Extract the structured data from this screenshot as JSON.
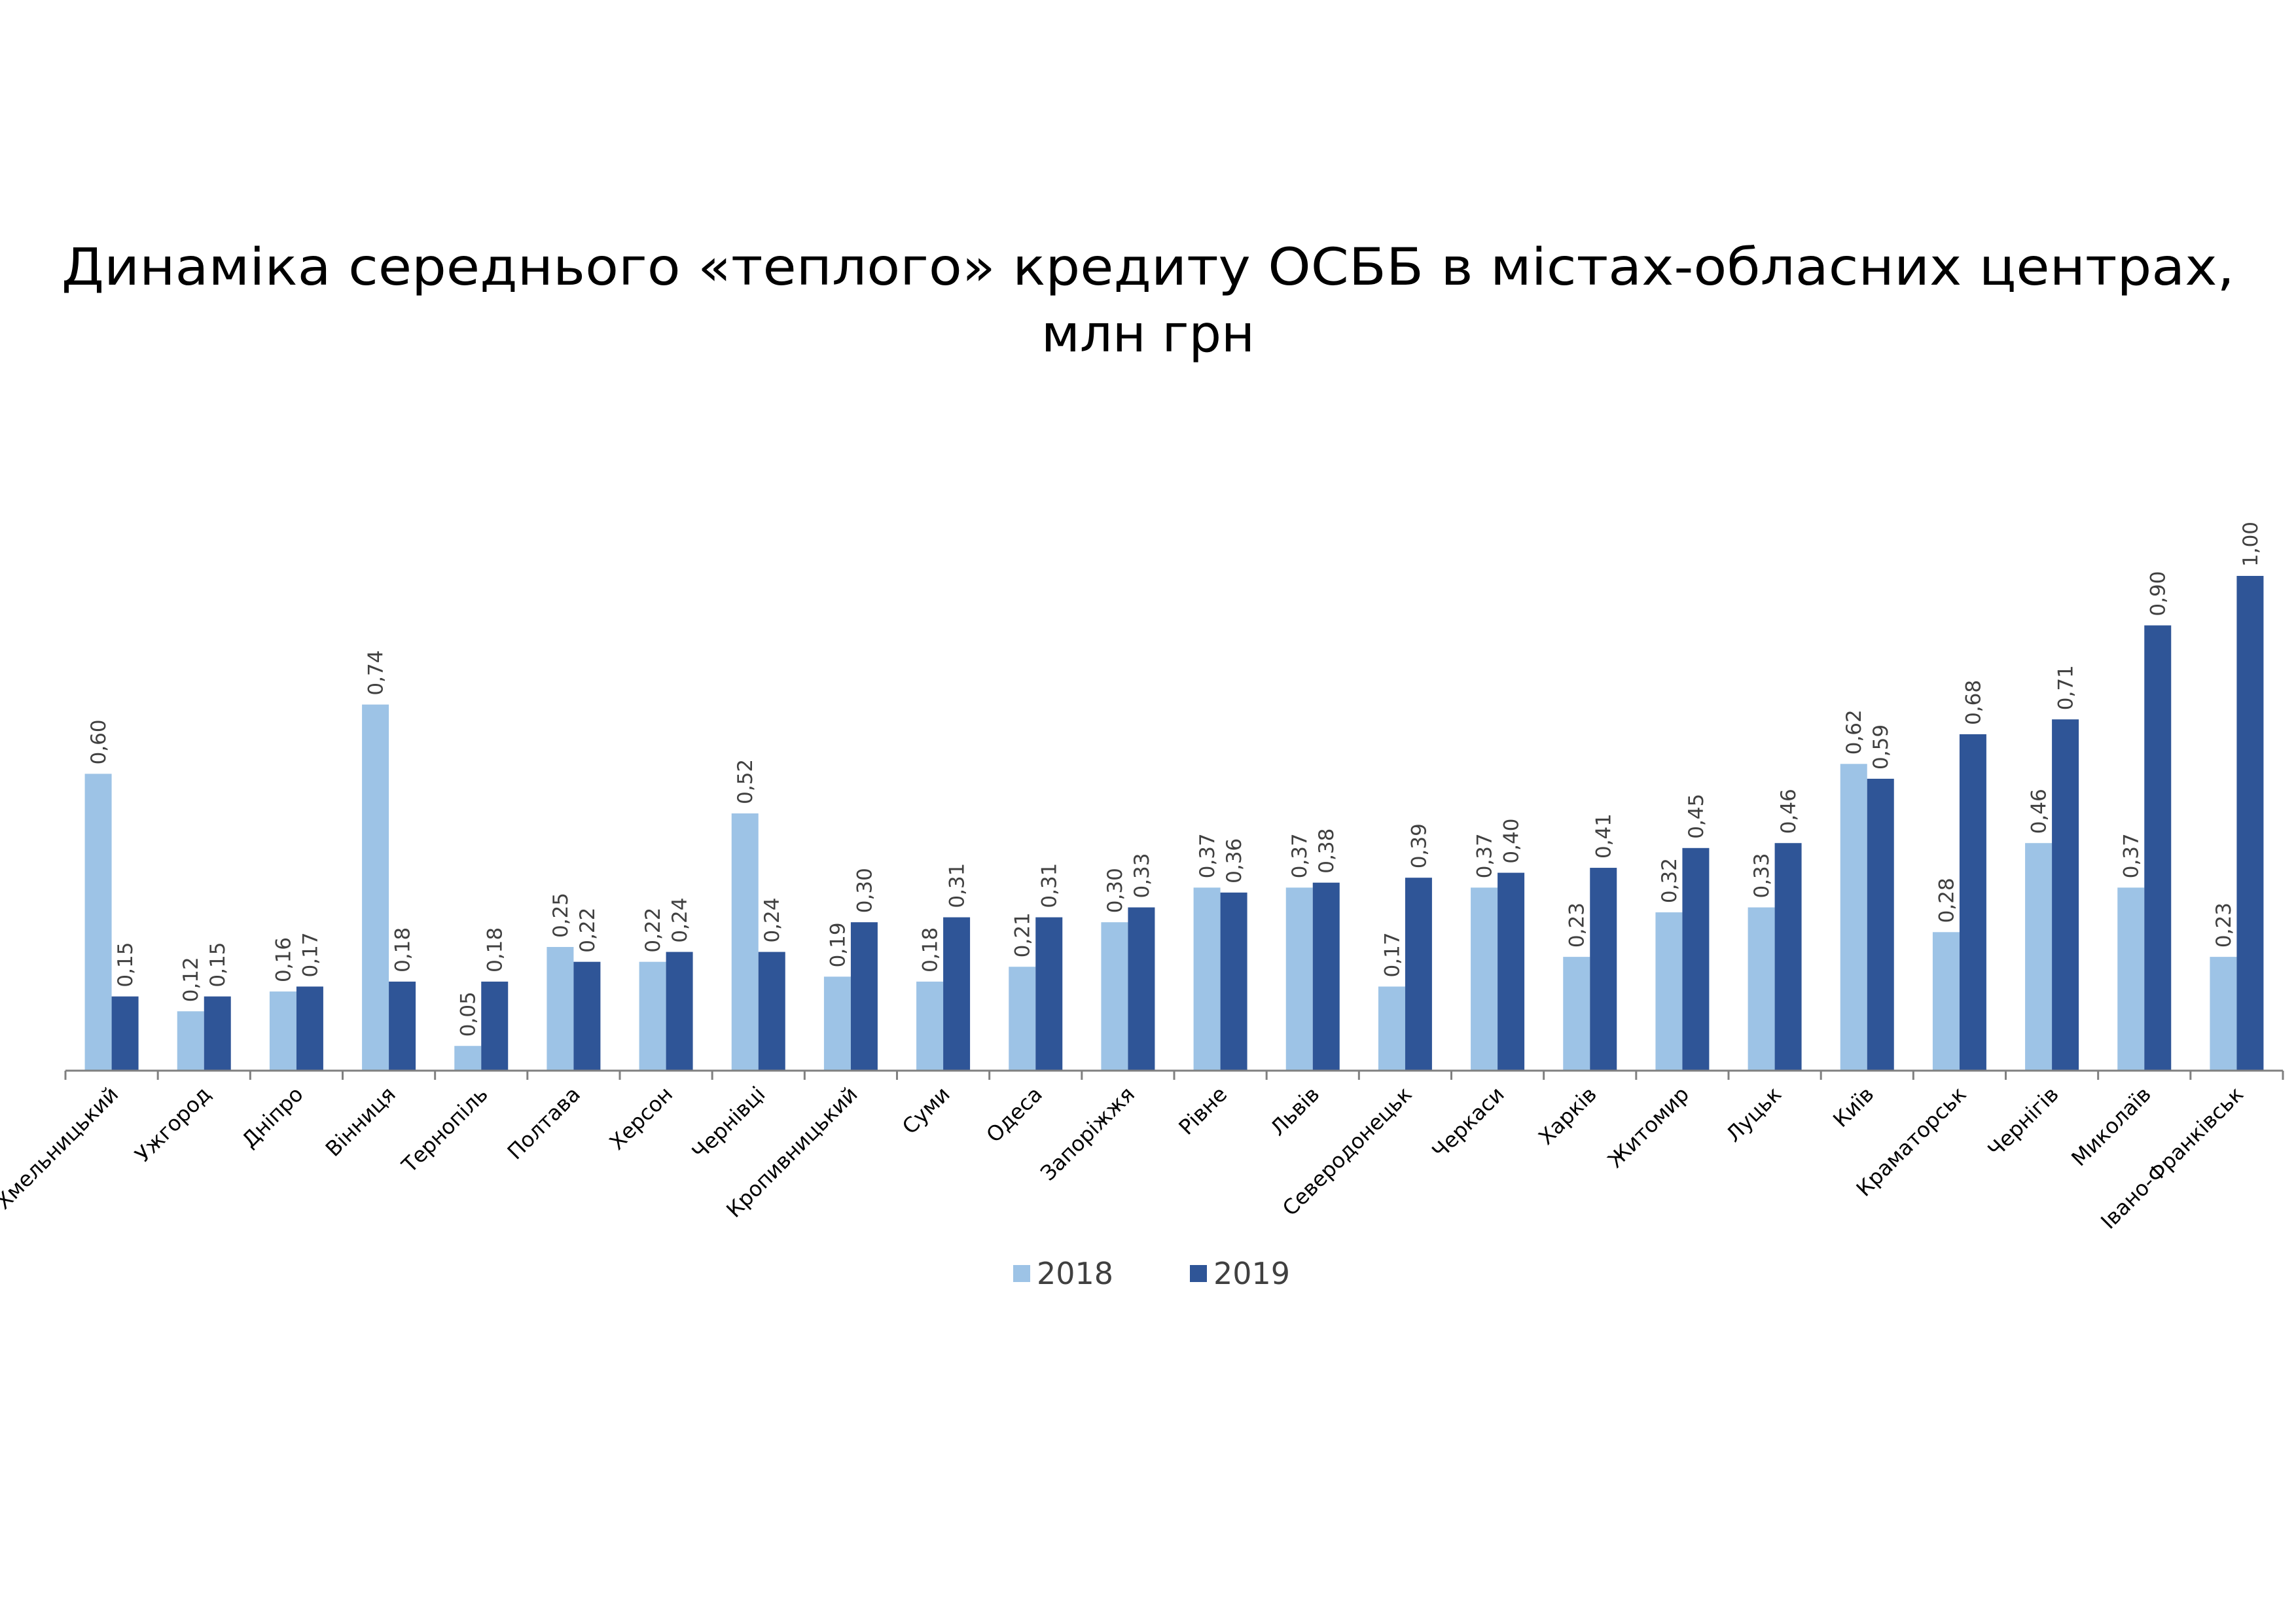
{
  "chart_data": {
    "type": "bar",
    "title_line1": "Динаміка середнього «теплого» кредиту ОСББ в містах-обласних центрах,",
    "title_line2": "млн грн",
    "xlabel": "",
    "ylabel": "",
    "ylim": [
      0,
      1.0
    ],
    "grid": false,
    "legend_position": "bottom",
    "categories": [
      "Хмельницький",
      "Ужгород",
      "Дніпро",
      "Вінниця",
      "Тернопіль",
      "Полтава",
      "Херсон",
      "Чернівці",
      "Кропивницький",
      "Суми",
      "Одеса",
      "Запоріжжя",
      "Рівне",
      "Львів",
      "Северодонецьк",
      "Черкаси",
      "Харків",
      "Житомир",
      "Луцьк",
      "Київ",
      "Краматорськ",
      "Чернігів",
      "Миколаїв",
      "Івано-Франківськ"
    ],
    "series": [
      {
        "name": "2018",
        "color": "#9dc3e6",
        "values": [
          0.6,
          0.12,
          0.16,
          0.74,
          0.05,
          0.25,
          0.22,
          0.52,
          0.19,
          0.18,
          0.21,
          0.3,
          0.37,
          0.37,
          0.17,
          0.37,
          0.23,
          0.32,
          0.33,
          0.62,
          0.28,
          0.46,
          0.37,
          0.23
        ],
        "value_labels": [
          "0,60",
          "0,12",
          "0,16",
          "0,74",
          "0,05",
          "0,25",
          "0,22",
          "0,52",
          "0,19",
          "0,18",
          "0,21",
          "0,30",
          "0,37",
          "0,37",
          "0,17",
          "0,37",
          "0,23",
          "0,32",
          "0,33",
          "0,62",
          "0,28",
          "0,46",
          "0,37",
          "0,23"
        ]
      },
      {
        "name": "2019",
        "color": "#2f5597",
        "values": [
          0.15,
          0.15,
          0.17,
          0.18,
          0.18,
          0.22,
          0.24,
          0.24,
          0.3,
          0.31,
          0.31,
          0.33,
          0.36,
          0.38,
          0.39,
          0.4,
          0.41,
          0.45,
          0.46,
          0.59,
          0.68,
          0.71,
          0.9,
          1.0
        ],
        "value_labels": [
          "0,15",
          "0,15",
          "0,17",
          "0,18",
          "0,18",
          "0,22",
          "0,24",
          "0,24",
          "0,30",
          "0,31",
          "0,31",
          "0,33",
          "0,36",
          "0,38",
          "0,39",
          "0,40",
          "0,41",
          "0,45",
          "0,46",
          "0,59",
          "0,68",
          "0,71",
          "0,90",
          "1,00"
        ]
      }
    ]
  }
}
